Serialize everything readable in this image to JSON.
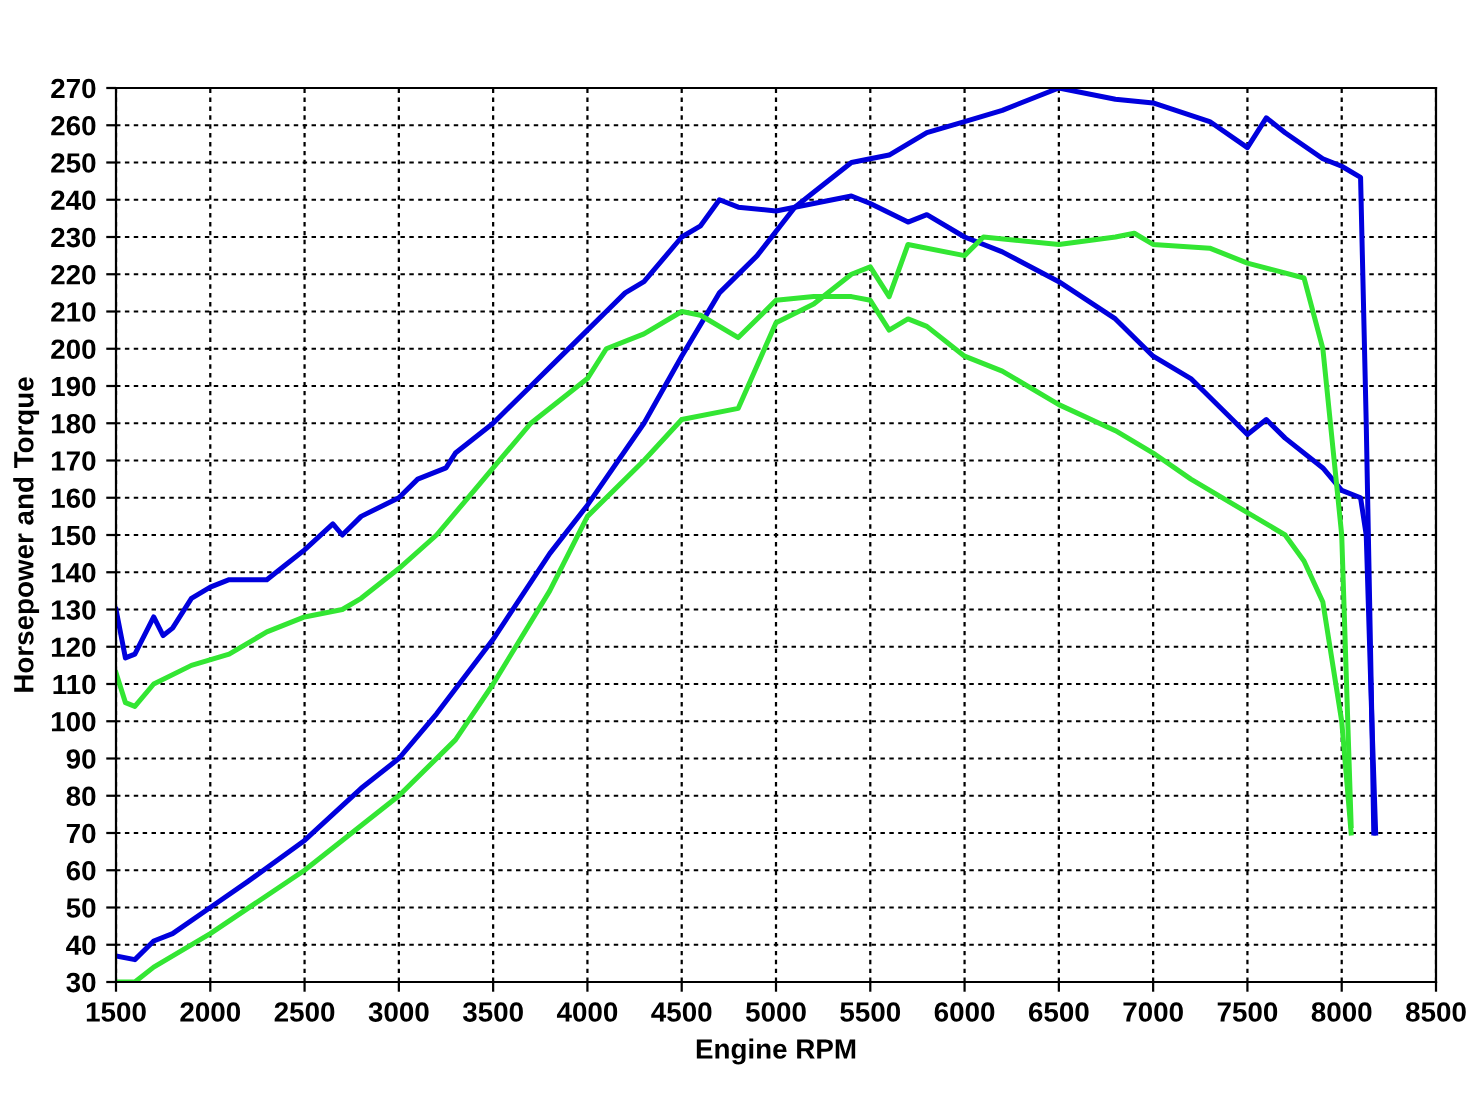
{
  "chart_data": {
    "type": "line",
    "xlabel": "Engine RPM",
    "ylabel": "Horsepower and Torque",
    "xlim": [
      1500,
      8500
    ],
    "xticks": [
      1500,
      2000,
      2500,
      3000,
      3500,
      4000,
      4500,
      5000,
      5500,
      6000,
      6500,
      7000,
      7500,
      8000,
      8500
    ],
    "ylim": [
      30,
      270
    ],
    "yticks": [
      30,
      40,
      50,
      60,
      70,
      80,
      90,
      100,
      110,
      120,
      130,
      140,
      150,
      160,
      170,
      180,
      190,
      200,
      210,
      220,
      230,
      240,
      250,
      260,
      270
    ],
    "grid": true,
    "marker": "none",
    "line_style": "solid",
    "series": [
      {
        "color": "#0000dd",
        "x": [
          1500,
          1550,
          1600,
          1700,
          1750,
          1800,
          1900,
          2000,
          2100,
          2300,
          2400,
          2500,
          2650,
          2700,
          2800,
          3000,
          3100,
          3250,
          3300,
          3500,
          3700,
          3800,
          4000,
          4100,
          4200,
          4300,
          4500,
          4600,
          4700,
          4800,
          5000,
          5200,
          5400,
          5500,
          5700,
          5800,
          6000,
          6200,
          6500,
          6800,
          7000,
          7200,
          7400,
          7500,
          7600,
          7700,
          7900,
          8000,
          8100,
          8130,
          8160,
          8170
        ],
        "values": [
          130,
          117,
          118,
          128,
          123,
          125,
          133,
          136,
          138,
          138,
          142,
          146,
          153,
          150,
          155,
          160,
          165,
          168,
          172,
          180,
          190,
          195,
          205,
          210,
          215,
          218,
          230,
          233,
          240,
          238,
          237,
          239,
          241,
          239,
          234,
          236,
          230,
          226,
          218,
          208,
          198,
          192,
          182,
          177,
          181,
          176,
          168,
          162,
          160,
          150,
          100,
          70
        ]
      },
      {
        "color": "#0000dd",
        "x": [
          1500,
          1600,
          1700,
          1800,
          2000,
          2200,
          2500,
          2800,
          3000,
          3200,
          3500,
          3800,
          4000,
          4300,
          4500,
          4700,
          4900,
          5100,
          5200,
          5400,
          5600,
          5800,
          6000,
          6200,
          6500,
          6800,
          7000,
          7300,
          7500,
          7600,
          7700,
          7900,
          8000,
          8100,
          8130,
          8160,
          8180
        ],
        "values": [
          37,
          36,
          41,
          43,
          50,
          57,
          68,
          82,
          90,
          102,
          122,
          145,
          158,
          180,
          198,
          215,
          225,
          238,
          242,
          250,
          252,
          258,
          261,
          264,
          270,
          267,
          266,
          261,
          254,
          262,
          258,
          251,
          249,
          246,
          180,
          100,
          70
        ]
      },
      {
        "color": "#33e633",
        "x": [
          1500,
          1550,
          1600,
          1700,
          1900,
          2100,
          2300,
          2500,
          2700,
          2800,
          3000,
          3200,
          3400,
          3500,
          3700,
          4000,
          4100,
          4300,
          4500,
          4600,
          4800,
          5000,
          5200,
          5400,
          5500,
          5600,
          5700,
          5800,
          6000,
          6200,
          6500,
          6800,
          7000,
          7200,
          7500,
          7700,
          7800,
          7900,
          8000,
          8050
        ],
        "values": [
          113,
          105,
          104,
          110,
          115,
          118,
          124,
          128,
          130,
          133,
          141,
          150,
          162,
          168,
          180,
          192,
          200,
          204,
          210,
          209,
          203,
          213,
          214,
          214,
          213,
          205,
          208,
          206,
          198,
          194,
          185,
          178,
          172,
          165,
          156,
          150,
          143,
          132,
          100,
          70
        ]
      },
      {
        "color": "#33e633",
        "x": [
          1500,
          1600,
          1700,
          2000,
          2500,
          3000,
          3300,
          3500,
          3800,
          4000,
          4300,
          4500,
          4800,
          5000,
          5200,
          5400,
          5500,
          5600,
          5700,
          6000,
          6100,
          6500,
          6800,
          6900,
          7000,
          7300,
          7500,
          7800,
          7900,
          8000,
          8050
        ],
        "values": [
          30,
          30,
          34,
          43,
          60,
          80,
          95,
          110,
          135,
          155,
          170,
          181,
          184,
          207,
          212,
          220,
          222,
          214,
          228,
          225,
          230,
          228,
          230,
          231,
          228,
          227,
          223,
          219,
          200,
          150,
          72
        ]
      }
    ]
  }
}
